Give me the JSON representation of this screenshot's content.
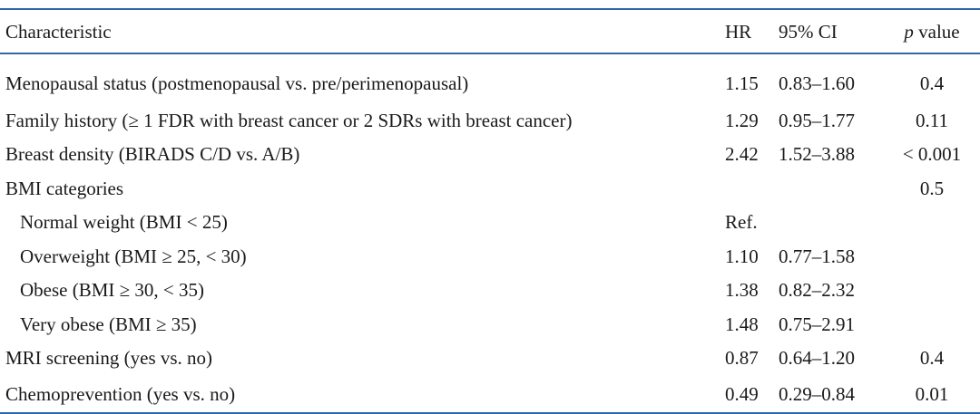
{
  "header": {
    "characteristic": "Characteristic",
    "hr": "HR",
    "ci": "95% CI",
    "p_italic": "p",
    "p_rest": " value"
  },
  "rows": [
    {
      "label": "Menopausal status (postmenopausal vs. pre/perimenopausal)",
      "hr": "1.15",
      "ci": "0.83–1.60",
      "p": "0.4"
    },
    {
      "label": "Family history (≥ 1 FDR with breast cancer or 2 SDRs with breast cancer)",
      "hr": "1.29",
      "ci": "0.95–1.77",
      "p": "0.11"
    },
    {
      "label": "Breast density (BIRADS C/D vs. A/B)",
      "hr": "2.42",
      "ci": "1.52–3.88",
      "p": "< 0.001"
    },
    {
      "label": "BMI categories",
      "hr": "",
      "ci": "",
      "p": "0.5"
    },
    {
      "label": "Normal weight (BMI < 25)",
      "hr": "Ref.",
      "ci": "",
      "p": ""
    },
    {
      "label": "Overweight (BMI ≥ 25, < 30)",
      "hr": "1.10",
      "ci": "0.77–1.58",
      "p": ""
    },
    {
      "label": "Obese (BMI ≥ 30, < 35)",
      "hr": "1.38",
      "ci": "0.82–2.32",
      "p": ""
    },
    {
      "label": "Very obese (BMI ≥ 35)",
      "hr": "1.48",
      "ci": "0.75–2.91",
      "p": ""
    },
    {
      "label": "MRI screening (yes vs. no)",
      "hr": "0.87",
      "ci": "0.64–1.20",
      "p": "0.4"
    },
    {
      "label": "Chemoprevention (yes vs. no)",
      "hr": "0.49",
      "ci": "0.29–0.84",
      "p": "0.01"
    }
  ],
  "colors": {
    "rule": "#2f68a8",
    "text": "#1a1a1a"
  }
}
